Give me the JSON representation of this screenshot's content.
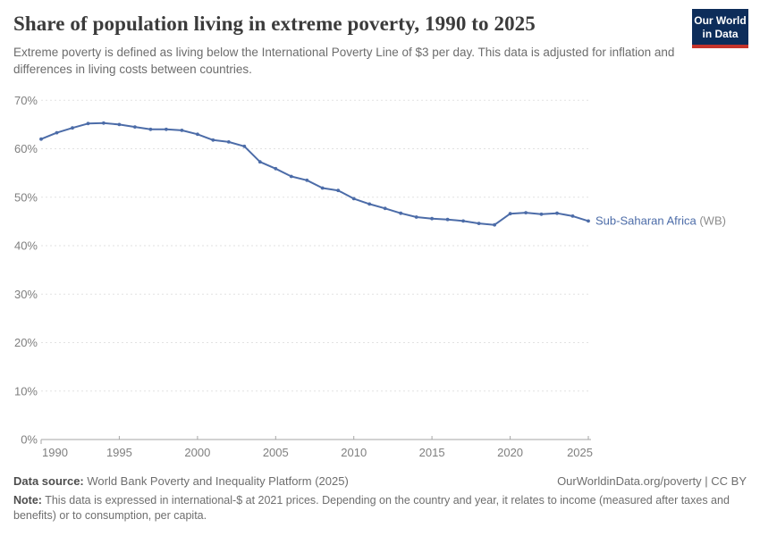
{
  "header": {
    "title": "Share of population living in extreme poverty, 1990 to 2025",
    "subtitle": "Extreme poverty is defined as living below the International Poverty Line of $3 per day. This data is adjusted for inflation and differences in living costs between countries.",
    "logo": {
      "line1": "Our World",
      "line2": "in Data",
      "bg_color": "#0d2d5a",
      "stripe_color": "#c5342b"
    }
  },
  "chart_data": {
    "type": "line",
    "title": "Share of population living in extreme poverty, 1990 to 2025",
    "xlabel": "",
    "ylabel": "",
    "xlim": [
      1990,
      2025
    ],
    "ylim": [
      0,
      70
    ],
    "x_ticks": [
      1990,
      1995,
      2000,
      2005,
      2010,
      2015,
      2020,
      2025
    ],
    "y_ticks": [
      0,
      10,
      20,
      30,
      40,
      50,
      60,
      70
    ],
    "y_tick_suffix": "%",
    "grid": "horizontal-dashed",
    "legend_position": "end-of-line-label",
    "x": [
      1990,
      1991,
      1992,
      1993,
      1994,
      1995,
      1996,
      1997,
      1998,
      1999,
      2000,
      2001,
      2002,
      2003,
      2004,
      2005,
      2006,
      2007,
      2008,
      2009,
      2010,
      2011,
      2012,
      2013,
      2014,
      2015,
      2016,
      2017,
      2018,
      2019,
      2020,
      2021,
      2022,
      2023,
      2024,
      2025
    ],
    "series": [
      {
        "name": "Sub-Saharan Africa (WB)",
        "label_main": "Sub-Saharan Africa",
        "label_suffix": " (WB)",
        "color": "#4c6ca8",
        "suffix_color": "#8c8c8c",
        "values": [
          62.0,
          63.3,
          64.3,
          65.2,
          65.3,
          65.0,
          64.5,
          64.0,
          64.0,
          63.8,
          63.0,
          61.8,
          61.4,
          60.5,
          57.3,
          55.9,
          54.3,
          53.5,
          51.9,
          51.4,
          49.7,
          48.6,
          47.7,
          46.7,
          45.9,
          45.6,
          45.4,
          45.1,
          44.6,
          44.3,
          46.6,
          46.8,
          46.5,
          46.7,
          46.1,
          45.1
        ]
      }
    ],
    "style": {
      "grid_color": "#e2e2e2",
      "axis_color": "#a6a6a6",
      "tick_label_color": "#7f7f7f"
    }
  },
  "footer": {
    "datasource_label": "Data source:",
    "datasource_value": " World Bank Poverty and Inequality Platform (2025)",
    "rights": "OurWorldinData.org/poverty | CC BY",
    "note_label": "Note:",
    "note_value": " This data is expressed in international-$ at 2021 prices. Depending on the country and year, it relates to income (measured after taxes and benefits) or to consumption, per capita."
  }
}
